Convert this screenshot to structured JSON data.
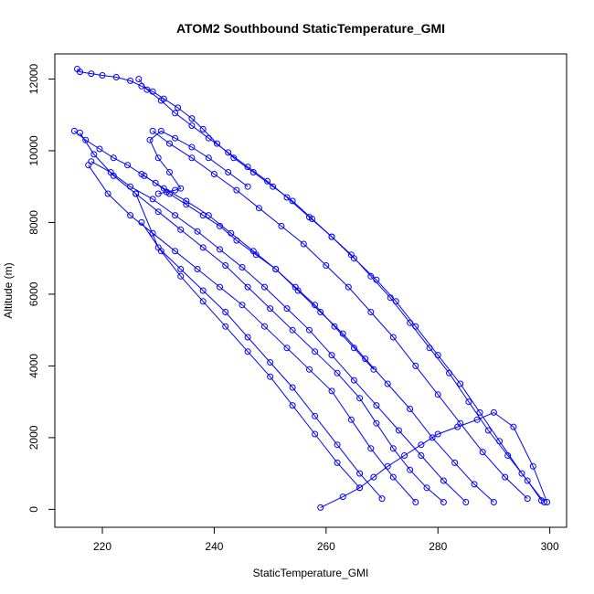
{
  "chart_data": {
    "type": "scatter",
    "title": "ATOM2 Southbound StaticTemperature_GMI",
    "xlabel": "StaticTemperature_GMI",
    "ylabel": "Altitude (m)",
    "xlim": [
      211.5,
      303
    ],
    "ylim": [
      -500,
      12700
    ],
    "x_ticks": [
      220,
      240,
      260,
      280,
      300
    ],
    "y_ticks": [
      0,
      2000,
      4000,
      6000,
      8000,
      10000,
      12000
    ],
    "grid": false,
    "legend": "none",
    "marker": "open-circle",
    "connected": true,
    "color": "#0000ff",
    "series": [
      {
        "x": [
          298.5,
          296.0,
          292.5,
          289.0,
          285.5,
          282.0,
          278.5,
          275.0,
          271.5,
          268.0,
          264.5,
          261.0,
          257.5,
          254.0,
          250.5,
          247.0,
          243.5,
          240.5,
          238.0,
          236.0,
          233.5,
          231.0,
          229.0,
          227.0,
          225.0,
          222.5,
          220.0,
          218.0,
          216.0,
          215.5
        ],
        "y": [
          250,
          800,
          1500,
          2200,
          3000,
          3800,
          4500,
          5200,
          5900,
          6500,
          7100,
          7600,
          8100,
          8600,
          9000,
          9400,
          9800,
          10200,
          10600,
          10900,
          11200,
          11450,
          11650,
          11800,
          11950,
          12050,
          12100,
          12150,
          12200,
          12280
        ]
      },
      {
        "x": [
          299.0,
          295.0,
          291.0,
          287.5,
          284.0,
          280.0,
          276.0,
          272.5,
          269.0,
          265.0,
          261.0,
          257.0,
          253.0,
          249.5,
          246.0,
          242.5,
          239.0,
          236.0,
          233.0,
          230.5,
          228.0,
          226.5
        ],
        "y": [
          200,
          1000,
          1900,
          2700,
          3500,
          4300,
          5100,
          5800,
          6400,
          7000,
          7600,
          8150,
          8700,
          9150,
          9550,
          9950,
          10350,
          10700,
          11050,
          11400,
          11700,
          12000
        ]
      },
      {
        "x": [
          296.0,
          292.0,
          288.0,
          284.0,
          280.0,
          276.0,
          272.0,
          268.0,
          264.0,
          260.0,
          256.0,
          252.0,
          248.0,
          244.0,
          240.0,
          236.0,
          232.0,
          229.0
        ],
        "y": [
          300,
          900,
          1600,
          2400,
          3200,
          4000,
          4800,
          5500,
          6200,
          6800,
          7400,
          7900,
          8400,
          8900,
          9350,
          9800,
          10200,
          10550
        ]
      },
      {
        "x": [
          290.0,
          286.5,
          283.0,
          279.0,
          275.0,
          271.0,
          267.0,
          263.0,
          259.0,
          255.0,
          251.0,
          247.0,
          243.0,
          239.0,
          235.0,
          231.0,
          227.5
        ],
        "y": [
          200,
          700,
          1300,
          2000,
          2800,
          3500,
          4200,
          4900,
          5500,
          6100,
          6700,
          7200,
          7700,
          8200,
          8600,
          8950,
          9300
        ]
      },
      {
        "x": [
          285.0,
          281.0,
          277.0,
          273.0,
          269.0,
          265.0,
          261.0,
          257.0,
          253.0,
          249.0,
          245.0,
          241.0,
          237.0,
          233.0,
          229.0,
          225.0,
          221.5,
          218.0
        ],
        "y": [
          200,
          800,
          1500,
          2200,
          2900,
          3600,
          4300,
          5000,
          5600,
          6200,
          6750,
          7250,
          7750,
          8200,
          8650,
          9000,
          9400,
          9700
        ]
      },
      {
        "x": [
          276.0,
          272.0,
          268.0,
          264.5,
          261.0,
          257.0,
          253.0,
          249.0,
          245.0,
          241.0,
          237.0,
          233.0,
          229.0,
          225.0,
          221.0,
          217.5
        ],
        "y": [
          200,
          900,
          1700,
          2500,
          3300,
          3900,
          4500,
          5100,
          5700,
          6200,
          6700,
          7200,
          7700,
          8200,
          8800,
          9600
        ]
      },
      {
        "x": [
          281.0,
          278.0,
          275.0,
          272.0,
          269.0,
          266.0,
          262.0,
          258.0,
          254.0,
          250.0,
          246.0,
          242.0,
          238.0,
          234.0,
          230.0,
          226.0,
          222.0,
          218.5,
          216.0
        ],
        "y": [
          200,
          600,
          1100,
          1700,
          2400,
          3100,
          3800,
          4400,
          5000,
          5600,
          6200,
          6800,
          7300,
          7800,
          8300,
          8800,
          9300,
          9900,
          10500
        ]
      },
      {
        "x": [
          266.0,
          262.0,
          258.0,
          254.0,
          250.0,
          246.0,
          242.0,
          238.0,
          234.0,
          230.5,
          227.0
        ],
        "y": [
          600,
          1300,
          2100,
          2900,
          3700,
          4400,
          5100,
          5800,
          6500,
          7200,
          8000
        ]
      },
      {
        "x": [
          270.0,
          266.0,
          262.0,
          258.0,
          254.0,
          250.0,
          246.0,
          242.0,
          238.0,
          234.0,
          230.0,
          226.0
        ],
        "y": [
          300,
          1000,
          1800,
          2600,
          3400,
          4100,
          4800,
          5500,
          6100,
          6700,
          7300,
          8800
        ]
      },
      {
        "x": [
          259.0,
          263.0,
          266.0,
          268.5,
          271.0,
          274.0,
          277.0,
          280.0,
          283.5,
          287.0,
          290.0,
          293.5,
          297.0,
          299.5
        ],
        "y": [
          50,
          350,
          600,
          900,
          1200,
          1500,
          1800,
          2100,
          2300,
          2500,
          2700,
          2300,
          1200,
          200
        ]
      },
      {
        "x": [
          215.0,
          217.0,
          219.5,
          222.0,
          224.5,
          227.0,
          229.5,
          232.0,
          235.0,
          238.0,
          241.0,
          244.0,
          247.5,
          251.0,
          254.5,
          258.0,
          261.5,
          265.0,
          268.5
        ],
        "y": [
          10550,
          10300,
          10050,
          9800,
          9600,
          9350,
          9100,
          8800,
          8500,
          8200,
          7900,
          7500,
          7100,
          6700,
          6200,
          5700,
          5100,
          4500,
          3900
        ]
      },
      {
        "x": [
          230.0,
          231.5,
          233.0,
          234.0,
          232.0,
          230.0,
          228.5,
          230.5,
          233.0,
          236.0,
          239.0,
          242.5,
          246.0
        ],
        "y": [
          8800,
          8850,
          8900,
          8950,
          9400,
          9800,
          10300,
          10550,
          10350,
          10100,
          9800,
          9400,
          9000
        ]
      }
    ]
  }
}
